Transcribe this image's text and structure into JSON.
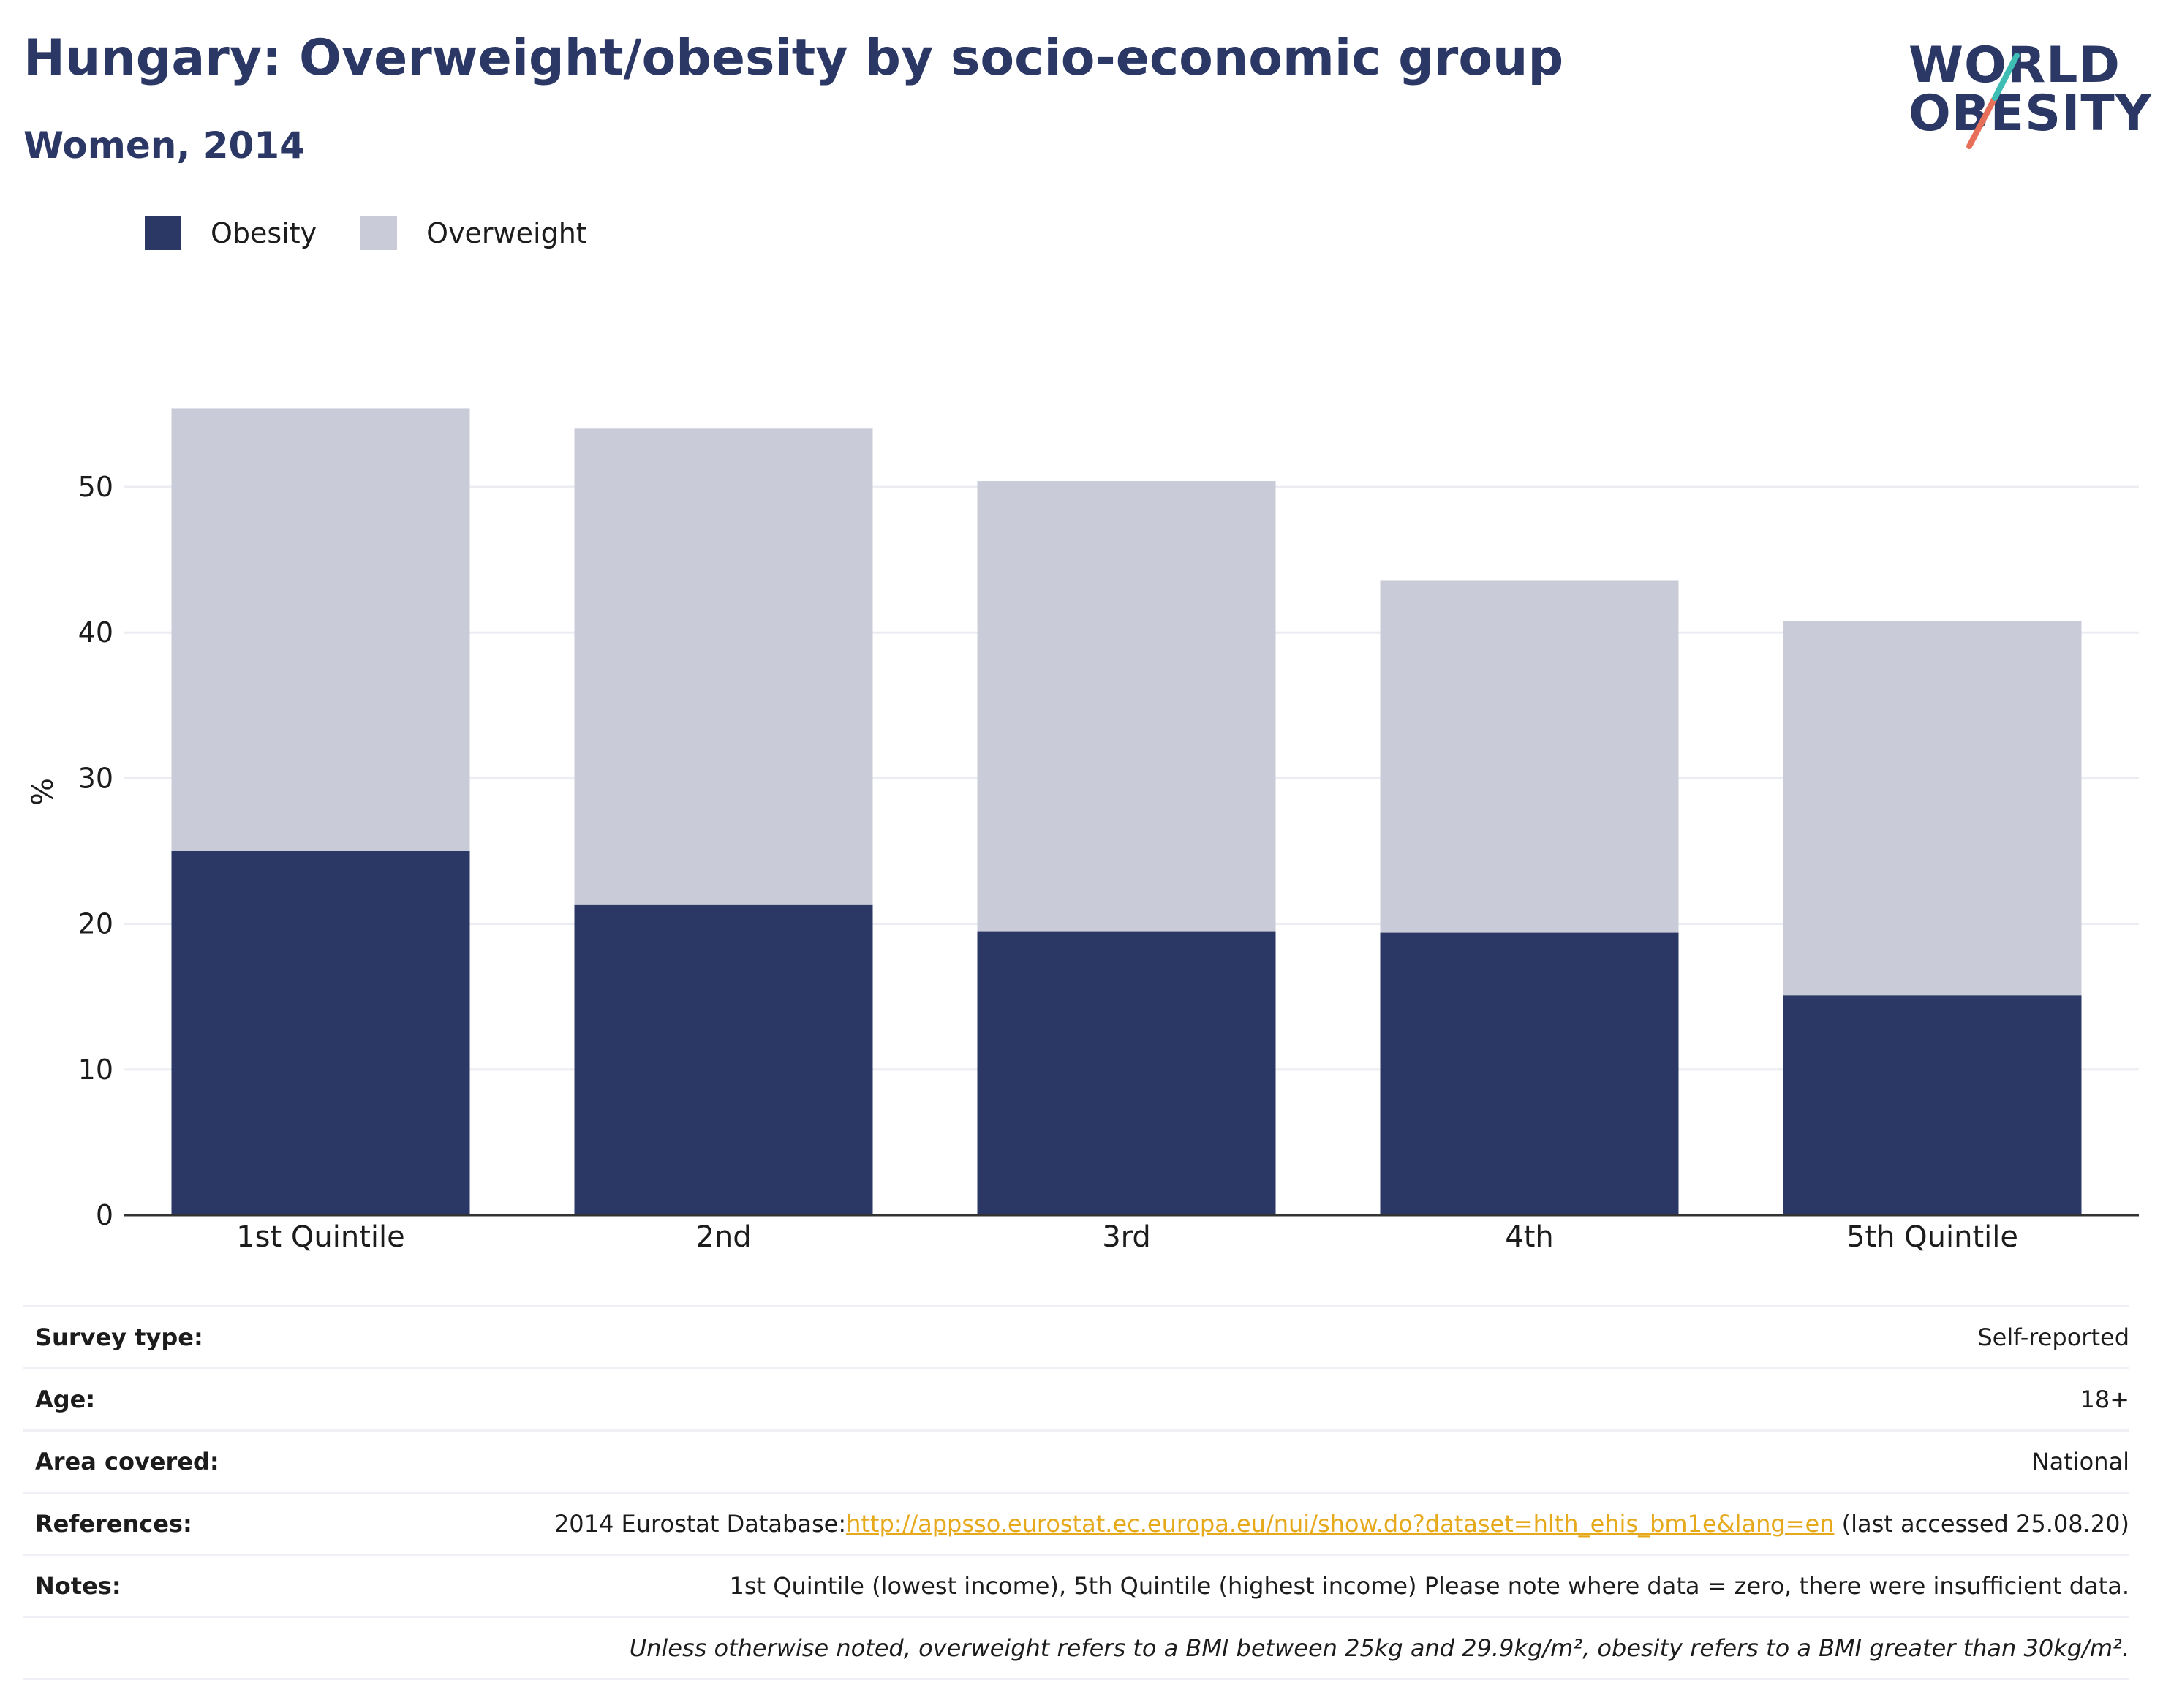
{
  "header": {
    "title": "Hungary: Overweight/obesity by socio-economic group",
    "subtitle": "Women, 2014"
  },
  "logo": {
    "line1": "WORLD",
    "line2": "OBESITY",
    "accent_teal": "#3dbdb4",
    "accent_coral": "#e8705a"
  },
  "legend": [
    {
      "label": "Obesity",
      "color": "#2b3764"
    },
    {
      "label": "Overweight",
      "color": "#c9ccd8"
    }
  ],
  "chart_data": {
    "type": "bar",
    "stacked": true,
    "categories": [
      "1st Quintile",
      "2nd",
      "3rd",
      "4th",
      "5th Quintile"
    ],
    "series": [
      {
        "name": "Obesity",
        "color": "#2b3764",
        "values": [
          25.0,
          21.3,
          19.5,
          19.4,
          15.1
        ]
      },
      {
        "name": "Overweight",
        "color": "#c9ccd8",
        "values": [
          30.4,
          32.7,
          30.9,
          24.2,
          25.7
        ]
      }
    ],
    "ylabel": "%",
    "ylim": [
      0,
      60
    ],
    "yticks": [
      0,
      10,
      20,
      30,
      40,
      50
    ],
    "grid": true
  },
  "info": {
    "survey_type_label": "Survey type:",
    "survey_type_value": "Self-reported",
    "age_label": "Age:",
    "age_value": "18+",
    "area_label": "Area covered:",
    "area_value": "National",
    "references_label": "References:",
    "references_prefix": "2014 Eurostat Database:",
    "references_link": "http://appsso.eurostat.ec.europa.eu/nui/show.do?dataset=hlth_ehis_bm1e&lang=en",
    "references_suffix": " (last accessed 25.08.20)",
    "notes_label": "Notes:",
    "notes_value": "1st Quintile (lowest income), 5th Quintile (highest income) Please note where data = zero, there were insufficient data.",
    "footnote": "Unless otherwise noted, overweight refers to a BMI between 25kg and 29.9kg/m², obesity refers to a BMI greater than 30kg/m²."
  }
}
